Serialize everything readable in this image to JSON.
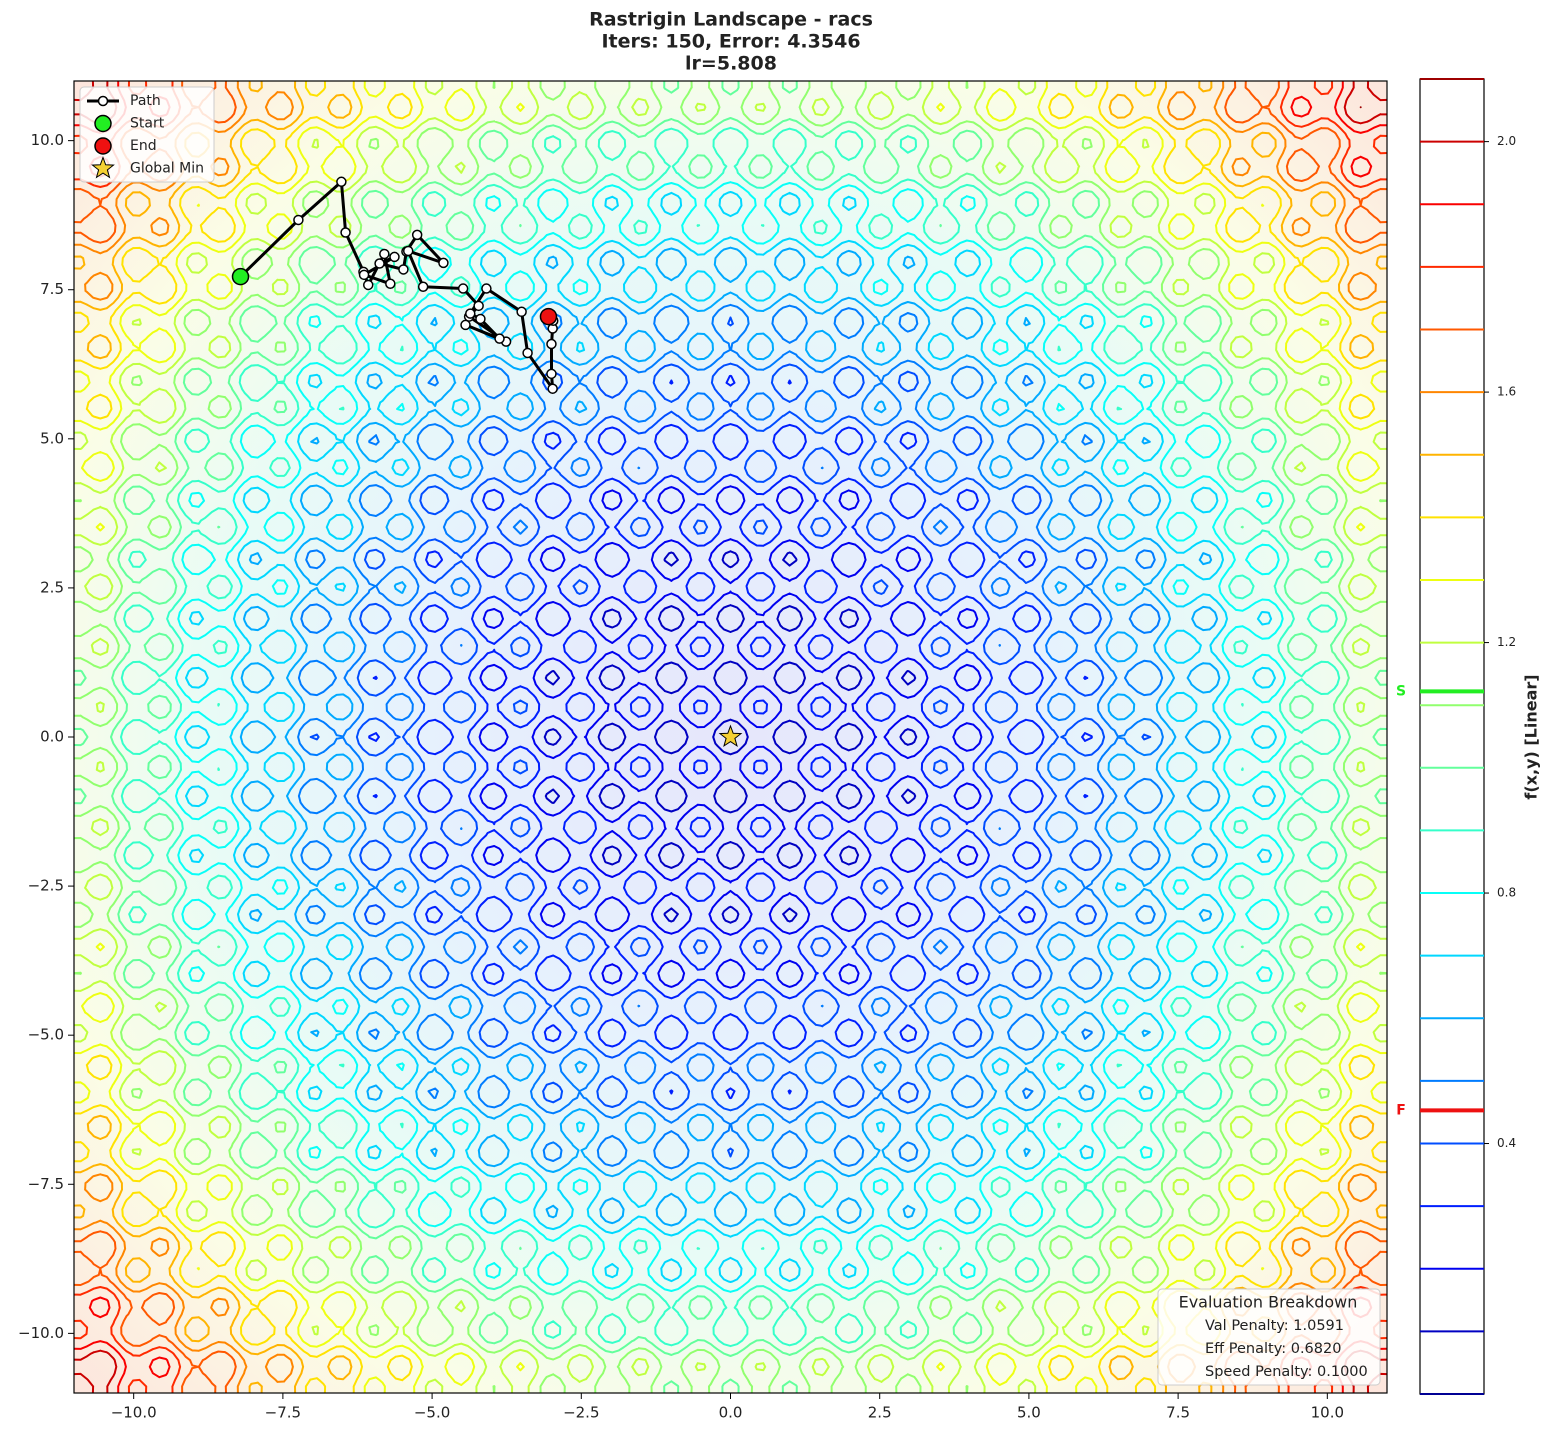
{
  "chart_data": {
    "type": "contour",
    "title": [
      "Rastrigin Landscape - racs",
      "Iters: 150, Error: 4.3546",
      "lr=5.808"
    ],
    "xlim": [
      -11,
      11
    ],
    "ylim": [
      -11,
      11
    ],
    "xticks": [
      {
        "value": -10,
        "label": "−10.0"
      },
      {
        "value": -7.5,
        "label": "−7.5"
      },
      {
        "value": -5,
        "label": "−5.0"
      },
      {
        "value": -2.5,
        "label": "−2.5"
      },
      {
        "value": 0,
        "label": "0.0"
      },
      2.5,
      {
        "value": 5,
        "label": "5.0"
      },
      7.5,
      {
        "value": 10,
        "label": "10.0"
      }
    ],
    "yticks": [
      {
        "value": -10,
        "label": "−10.0"
      },
      {
        "value": -7.5,
        "label": "−7.5"
      },
      {
        "value": -5,
        "label": "−5.0"
      },
      {
        "value": -2.5,
        "label": "−2.5"
      },
      {
        "value": 0,
        "label": "0.0"
      },
      2.5,
      {
        "value": 5,
        "label": "5.0"
      },
      7.5,
      {
        "value": 10,
        "label": "10.0"
      }
    ],
    "colormap": "jet",
    "series": [
      {
        "name": "Path",
        "color": "#000000",
        "x": [
          -8.21,
          -7.24,
          -6.52,
          -6.45,
          -6.15,
          -6.07,
          -5.8,
          -5.7,
          -6.14,
          -5.63,
          -5.88,
          -5.48,
          -5.43,
          -5.25,
          -4.81,
          -5.4,
          -5.15,
          -4.48,
          -4.22,
          -4.38,
          -3.76,
          -4.44,
          -3.87,
          -4.19,
          -4.36,
          -4.09,
          -3.5,
          -3.4,
          -2.98,
          -3.0,
          -3.0,
          -2.98,
          -2.97,
          -3.05
        ],
        "y": [
          7.72,
          8.67,
          9.31,
          8.46,
          7.8,
          7.58,
          8.1,
          7.6,
          7.75,
          8.05,
          7.94,
          7.84,
          8.14,
          8.42,
          7.95,
          8.15,
          7.55,
          7.52,
          7.23,
          7.05,
          6.63,
          6.91,
          6.68,
          7.01,
          7.1,
          7.52,
          7.13,
          6.44,
          5.84,
          6.09,
          6.59,
          6.85,
          6.98,
          7.05
        ]
      },
      {
        "name": "Start",
        "color": "#22ee22",
        "x": [
          -8.21
        ],
        "y": [
          7.72
        ]
      },
      {
        "name": "End",
        "color": "#ee1111",
        "x": [
          -3.05
        ],
        "y": [
          7.05
        ]
      },
      {
        "name": "Global Min",
        "color": "#f5d033",
        "x": [
          0
        ],
        "y": [
          0
        ]
      }
    ],
    "colorbar": {
      "label": "f(x,y) [Linear]",
      "lim": [
        0,
        2.1
      ],
      "ticks": [
        0.4,
        0.8,
        1.2,
        1.6,
        {
          "value": 2,
          "label": "2.0"
        }
      ],
      "levels": [
        0,
        0.1,
        0.2,
        0.3,
        0.4,
        0.5,
        0.6,
        0.7,
        0.8,
        0.9,
        1.0,
        1.1,
        1.2,
        1.3,
        1.4,
        1.5,
        1.6,
        1.7,
        1.8,
        1.9,
        2.0,
        2.1
      ],
      "markers": [
        {
          "label": "S",
          "value": 1.122,
          "color": "#22ee22"
        },
        {
          "label": "F",
          "value": 0.453,
          "color": "#ee1111"
        }
      ]
    },
    "annotation": {
      "title": "Evaluation Breakdown",
      "lines": [
        "Val Penalty: 1.0591",
        "Eff Penalty: 0.6820",
        "Speed Penalty: 0.1000"
      ]
    }
  }
}
